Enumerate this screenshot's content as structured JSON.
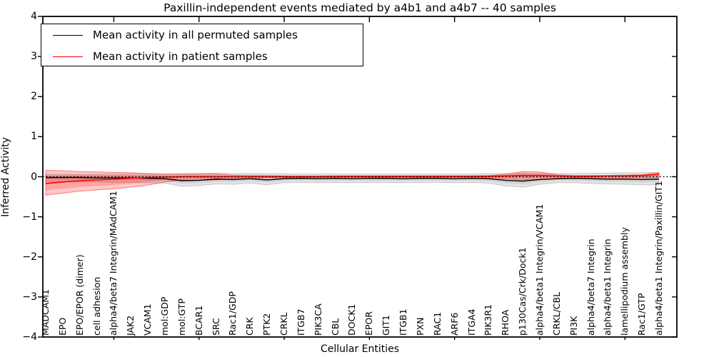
{
  "chart_data": {
    "type": "line",
    "title": "Paxillin-independent events mediated by a4b1 and a4b7 -- 40 samples",
    "xlabel": "Cellular Entities",
    "ylabel": "Inferred Activity",
    "ylim": [
      -4,
      4
    ],
    "yticks": [
      "-4",
      "-3",
      "-2",
      "-1",
      "0",
      "1",
      "2",
      "3",
      "4"
    ],
    "ytick_values": [
      -4,
      -3,
      -2,
      -1,
      0,
      1,
      2,
      3,
      4
    ],
    "grid": false,
    "legend_position": "upper left",
    "zero_reference_line": {
      "value": 0,
      "style": "dotted",
      "color": "#000000"
    },
    "top_axis_tick_positions": [
      4,
      9,
      14,
      19,
      24,
      29,
      34
    ],
    "categories": [
      "MADCAM1",
      "EPO",
      "EPO/EPOR (dimer)",
      "cell adhesion",
      "alpha4/beta7 Integrin/MAdCAM1",
      "JAK2",
      "VCAM1",
      "mol:GDP",
      "mol:GTP",
      "BCAR1",
      "SRC",
      "Rac1/GDP",
      "CRK",
      "PTK2",
      "CRKL",
      "ITGB7",
      "PIK3CA",
      "CBL",
      "DOCK1",
      "EPOR",
      "GIT1",
      "ITGB1",
      "PXN",
      "RAC1",
      "ARF6",
      "ITGA4",
      "PIK3R1",
      "RHOA",
      "p130Cas/Crk/Dock1",
      "alpha4/beta1 Integrin/VCAM1",
      "CRKL/CBL",
      "PI3K",
      "alpha4/beta7 Integrin",
      "alpha4/beta1 Integrin",
      "lamellipodium assembly",
      "Rac1/GTP",
      "alpha4/beta1 Integrin/Paxillin/GIT1"
    ],
    "series": [
      {
        "name": "Mean activity in all permuted samples",
        "color": "#000000",
        "band_fill": "rgba(0,0,0,0.10)",
        "band_edge": "rgba(0,0,0,0.18)",
        "values": [
          -0.02,
          -0.02,
          -0.02,
          -0.03,
          -0.03,
          -0.03,
          -0.04,
          -0.05,
          -0.1,
          -0.09,
          -0.06,
          -0.07,
          -0.05,
          -0.08,
          -0.05,
          -0.04,
          -0.05,
          -0.04,
          -0.05,
          -0.04,
          -0.04,
          -0.05,
          -0.04,
          -0.04,
          -0.05,
          -0.04,
          -0.05,
          -0.09,
          -0.11,
          -0.07,
          -0.05,
          -0.04,
          -0.05,
          -0.06,
          -0.06,
          -0.07,
          -0.06
        ],
        "band_upper": [
          0.06,
          0.06,
          0.06,
          0.06,
          0.07,
          0.07,
          0.07,
          0.07,
          0.08,
          0.08,
          0.09,
          0.08,
          0.08,
          0.08,
          0.07,
          0.07,
          0.07,
          0.07,
          0.07,
          0.07,
          0.07,
          0.07,
          0.07,
          0.07,
          0.07,
          0.07,
          0.08,
          0.08,
          0.09,
          0.08,
          0.08,
          0.08,
          0.09,
          0.09,
          0.1,
          0.1,
          0.11
        ],
        "band_lower": [
          -0.12,
          -0.12,
          -0.13,
          -0.13,
          -0.14,
          -0.14,
          -0.15,
          -0.16,
          -0.24,
          -0.22,
          -0.18,
          -0.19,
          -0.16,
          -0.2,
          -0.15,
          -0.14,
          -0.15,
          -0.14,
          -0.15,
          -0.14,
          -0.14,
          -0.15,
          -0.14,
          -0.14,
          -0.15,
          -0.14,
          -0.16,
          -0.23,
          -0.26,
          -0.19,
          -0.15,
          -0.15,
          -0.17,
          -0.18,
          -0.19,
          -0.2,
          -0.21
        ]
      },
      {
        "name": "Mean activity in patient samples",
        "color": "#ff0000",
        "band_fill": "rgba(255,0,0,0.22)",
        "band_edge": "rgba(255,0,0,0.45)",
        "values": [
          -0.17,
          -0.13,
          -0.1,
          -0.08,
          -0.06,
          -0.04,
          -0.02,
          -0.01,
          0.0,
          0.0,
          0.0,
          0.0,
          0.0,
          0.0,
          0.0,
          0.0,
          0.0,
          0.01,
          0.01,
          0.01,
          0.01,
          0.01,
          0.01,
          0.01,
          0.01,
          0.01,
          0.01,
          0.02,
          0.03,
          0.03,
          0.02,
          0.01,
          0.01,
          0.02,
          0.02,
          0.03,
          0.06
        ],
        "band_upper": [
          0.16,
          0.15,
          0.13,
          0.12,
          0.11,
          0.1,
          0.08,
          0.06,
          0.06,
          0.07,
          0.07,
          0.04,
          0.03,
          0.03,
          0.02,
          0.02,
          0.02,
          0.02,
          0.02,
          0.02,
          0.02,
          0.02,
          0.02,
          0.02,
          0.02,
          0.02,
          0.03,
          0.06,
          0.13,
          0.12,
          0.05,
          0.03,
          0.03,
          0.03,
          0.04,
          0.05,
          0.1
        ],
        "band_lower": [
          -0.46,
          -0.41,
          -0.36,
          -0.33,
          -0.3,
          -0.26,
          -0.21,
          -0.13,
          -0.08,
          -0.09,
          -0.08,
          -0.05,
          -0.04,
          -0.03,
          -0.03,
          -0.02,
          -0.02,
          -0.02,
          -0.02,
          -0.02,
          -0.02,
          -0.02,
          -0.02,
          -0.02,
          -0.02,
          -0.02,
          -0.03,
          -0.05,
          -0.08,
          -0.07,
          -0.04,
          -0.03,
          -0.03,
          -0.03,
          -0.03,
          -0.03,
          -0.02
        ]
      }
    ],
    "legend": [
      {
        "label": "Mean activity in all permuted samples",
        "color": "#000000"
      },
      {
        "label": "Mean activity in patient samples",
        "color": "#ff0000"
      }
    ]
  }
}
